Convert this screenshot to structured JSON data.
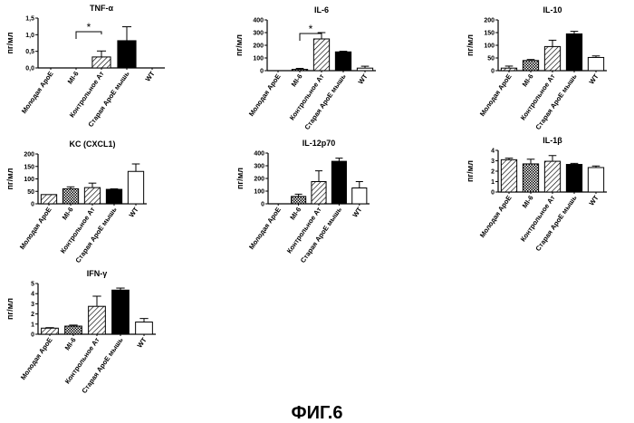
{
  "figure_caption": "ФИГ.6",
  "categories": [
    "Молодая ApoE",
    "MI-6",
    "Контрольное Ат",
    "Старая ApoE мышь",
    "WT"
  ],
  "ylabel": "пг/мл",
  "chart_data": [
    {
      "type": "bar",
      "title": "TNF-α",
      "ylabel": "пг/мл",
      "categories": [
        "Молодая ApoE",
        "MI-6",
        "Контрольное Ат",
        "Старая ApoE мышь",
        "WT"
      ],
      "values": [
        0,
        0,
        0.33,
        0.82,
        0
      ],
      "errors": [
        0,
        0,
        0.18,
        0.42,
        0
      ],
      "ylim": [
        0,
        1.5
      ],
      "yticks": [
        "0,0",
        "0,5",
        "1,0",
        "1,5"
      ],
      "significance": {
        "between": [
          1,
          2
        ],
        "label": "*"
      }
    },
    {
      "type": "bar",
      "title": "IL-6",
      "ylabel": "пг/мл",
      "categories": [
        "Молодая ApoE",
        "MI-6",
        "Контрольное Ат",
        "Старая ApoE мышь",
        "WT"
      ],
      "values": [
        0,
        10,
        250,
        148,
        20
      ],
      "errors": [
        0,
        8,
        50,
        5,
        15
      ],
      "ylim": [
        0,
        400
      ],
      "yticks": [
        "0",
        "100",
        "200",
        "300",
        "400"
      ],
      "significance": {
        "between": [
          1,
          2
        ],
        "label": "*"
      }
    },
    {
      "type": "bar",
      "title": "IL-10",
      "ylabel": "пг/мл",
      "categories": [
        "Молодая ApoE",
        "MI-6",
        "Контрольное Ат",
        "Старая ApoE мышь",
        "WT"
      ],
      "values": [
        10,
        40,
        95,
        145,
        52
      ],
      "errors": [
        8,
        4,
        25,
        10,
        6
      ],
      "ylim": [
        0,
        200
      ],
      "yticks": [
        "0",
        "50",
        "100",
        "150",
        "200"
      ]
    },
    {
      "type": "bar",
      "title": "KC (CXCL1)",
      "ylabel": "пг/мл",
      "categories": [
        "Молодая ApoE",
        "MI-6",
        "Контрольное Ат",
        "Старая ApoE мышь",
        "WT"
      ],
      "values": [
        37,
        60,
        65,
        58,
        130
      ],
      "errors": [
        0,
        8,
        18,
        2,
        30
      ],
      "ylim": [
        0,
        200
      ],
      "yticks": [
        "0",
        "50",
        "100",
        "150",
        "200"
      ]
    },
    {
      "type": "bar",
      "title": "IL-12p70",
      "ylabel": "пг/мл",
      "categories": [
        "Молодая ApoE",
        "MI-6",
        "Контрольное Ат",
        "Старая ApoE мышь",
        "WT"
      ],
      "values": [
        0,
        58,
        175,
        335,
        125
      ],
      "errors": [
        0,
        18,
        85,
        25,
        50
      ],
      "ylim": [
        0,
        400
      ],
      "yticks": [
        "0",
        "100",
        "200",
        "300",
        "400"
      ]
    },
    {
      "type": "bar",
      "title": "IL-1β",
      "ylabel": "пг/мл",
      "categories": [
        "Молодая ApoE",
        "MI-6",
        "Контрольное Ат",
        "Старая ApoE мышь",
        "WT"
      ],
      "values": [
        3.1,
        2.7,
        2.95,
        2.65,
        2.35
      ],
      "errors": [
        0.15,
        0.45,
        0.55,
        0.1,
        0.15
      ],
      "ylim": [
        0,
        4
      ],
      "yticks": [
        "0",
        "1",
        "2",
        "3",
        "4"
      ]
    },
    {
      "type": "bar",
      "title": "IFN-γ",
      "ylabel": "пг/мл",
      "categories": [
        "Молодая ApoE",
        "MI-6",
        "Контрольное Ат",
        "Старая ApoE мышь",
        "WT"
      ],
      "values": [
        0.6,
        0.8,
        2.75,
        4.35,
        1.2
      ],
      "errors": [
        0.05,
        0.1,
        1.0,
        0.2,
        0.35
      ],
      "ylim": [
        0,
        5
      ],
      "yticks": [
        "0",
        "1",
        "2",
        "3",
        "4",
        "5"
      ]
    }
  ]
}
